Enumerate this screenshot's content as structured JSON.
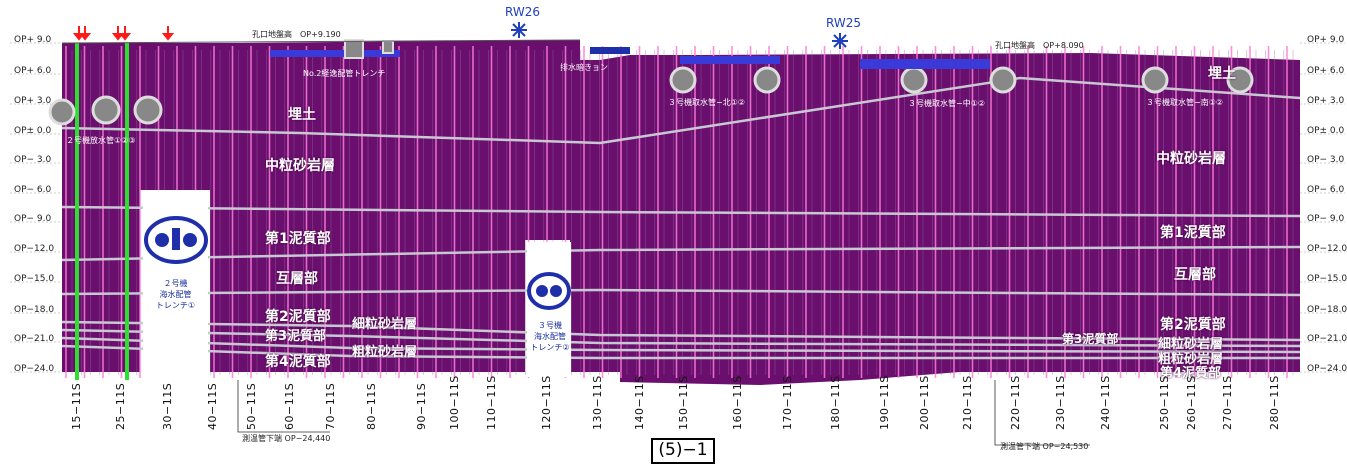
{
  "elevations_left": [
    "OP+ 9.0",
    "OP+ 6.0",
    "OP+ 3.0",
    "OP± 0.0",
    "OP− 3.0",
    "OP− 6.0",
    "OP− 9.0",
    "OP−12.0",
    "OP−15.0",
    "OP−18.0",
    "OP−21.0",
    "OP−24.0"
  ],
  "elevations_right": [
    "OP+ 9.0",
    "OP+ 6.0",
    "OP+ 3.0",
    "OP± 0.0",
    "OP− 3.0",
    "OP− 6.0",
    "OP− 9.0",
    "OP−12.0",
    "OP−15.0",
    "OP−18.0",
    "OP−21.0",
    "OP−24.0"
  ],
  "boreholes": [
    "15−11S",
    "25−11S",
    "30−11S",
    "40−11S",
    "50−11S",
    "60−11S",
    "70−11S",
    "80−11S",
    "90−11S",
    "100−11S",
    "110−11S",
    "120−11S",
    "130−11S",
    "140−11S",
    "150−11S",
    "160−11S",
    "170−11S",
    "180−11S",
    "190−11S",
    "200−11S",
    "210−11S",
    "220−11S",
    "230−11S",
    "240−11S",
    "250−11S",
    "260−11S",
    "270−11S",
    "280−11S"
  ],
  "layers_left": {
    "fill": "埋土",
    "medium_sandstone": "中粒砂岩層",
    "mudstone_1": "第1泥質部",
    "alternation": "互層部",
    "mudstone_2": "第2泥質部",
    "mudstone_3": "第3泥質部",
    "fine_sandstone": "細粒砂岩層",
    "coarse_sandstone": "粗粒砂岩層",
    "mudstone_4": "第4泥質部"
  },
  "layers_right": {
    "fill": "埋土",
    "medium_sandstone": "中粒砂岩層",
    "mudstone_1": "第1泥質部",
    "alternation": "互層部",
    "mudstone_2": "第2泥質部",
    "mudstone_3": "第3泥質部",
    "fine_sandstone": "細粒砂岩層",
    "coarse_sandstone": "粗粒砂岩層",
    "mudstone_4": "第4泥質部"
  },
  "annotations": {
    "ground_left": "孔口地盤高　OP+9.190",
    "ground_right": "孔口地盤高　OP+8.090",
    "trench_no2": "No.2経逸配管トレンチ",
    "drain_culvert": "排水暗きョン",
    "unit2_discharge": "２号機放水管①②③",
    "unit3_intake_north": "３号機取水管−北①②",
    "unit3_intake_mid": "３号機取水管−中①②",
    "unit3_intake_south": "３号機取水管−南①②",
    "bottom_left": "測温管下端 OP−24,440",
    "bottom_right": "測温管下端 OP−24,530",
    "rw26": "RW26",
    "rw25": "RW25",
    "trench_unit2": "２号機\n海水配管\nトレンチ①",
    "trench_unit3": "３号機\n海水配管\nトレンチ②"
  },
  "page_number": "(5)−1",
  "colors": {
    "ground": "#6a0f6e",
    "pink_line": "#ff7ad9",
    "green_line": "#2ee02e",
    "boundary": "#c8c8d2",
    "pipe_blue": "#1f2faa",
    "arrow_red": "#ff1a1a"
  }
}
